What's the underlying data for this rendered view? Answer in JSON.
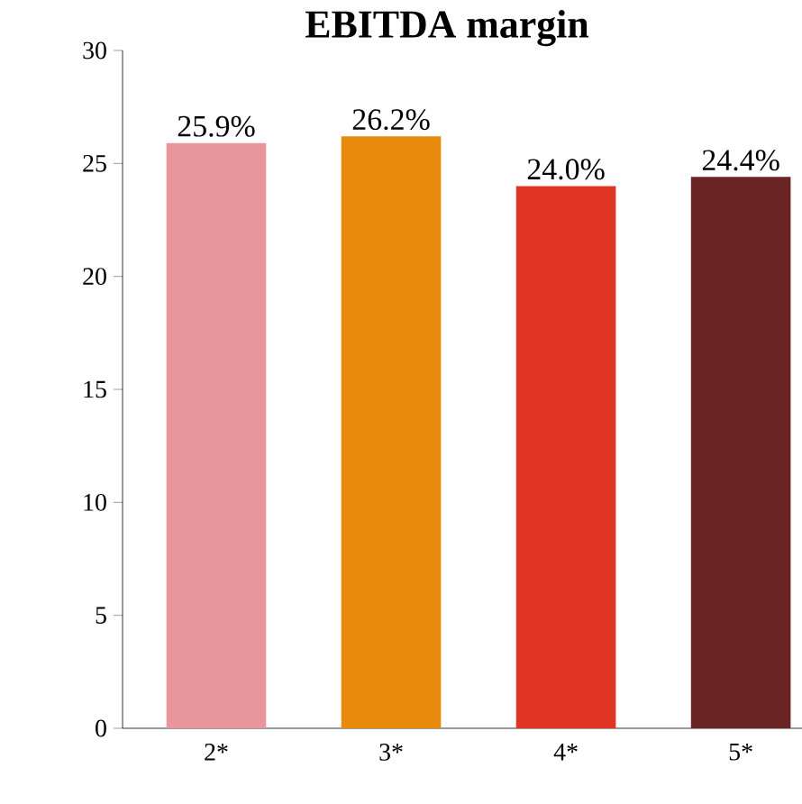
{
  "chart_data": {
    "type": "bar",
    "title": "EBITDA margin",
    "categories": [
      "2*",
      "3*",
      "4*",
      "5*"
    ],
    "values": [
      25.9,
      26.2,
      24.0,
      24.4
    ],
    "colors": [
      "#e8969b",
      "#e88a0c",
      "#e03425",
      "#6b2424"
    ],
    "value_labels": [
      "25.9%",
      "26.2%",
      "24.0%",
      "24.4%"
    ],
    "ylim": [
      0,
      30
    ],
    "yticks": [
      0,
      5,
      10,
      15,
      20,
      25,
      30
    ]
  }
}
